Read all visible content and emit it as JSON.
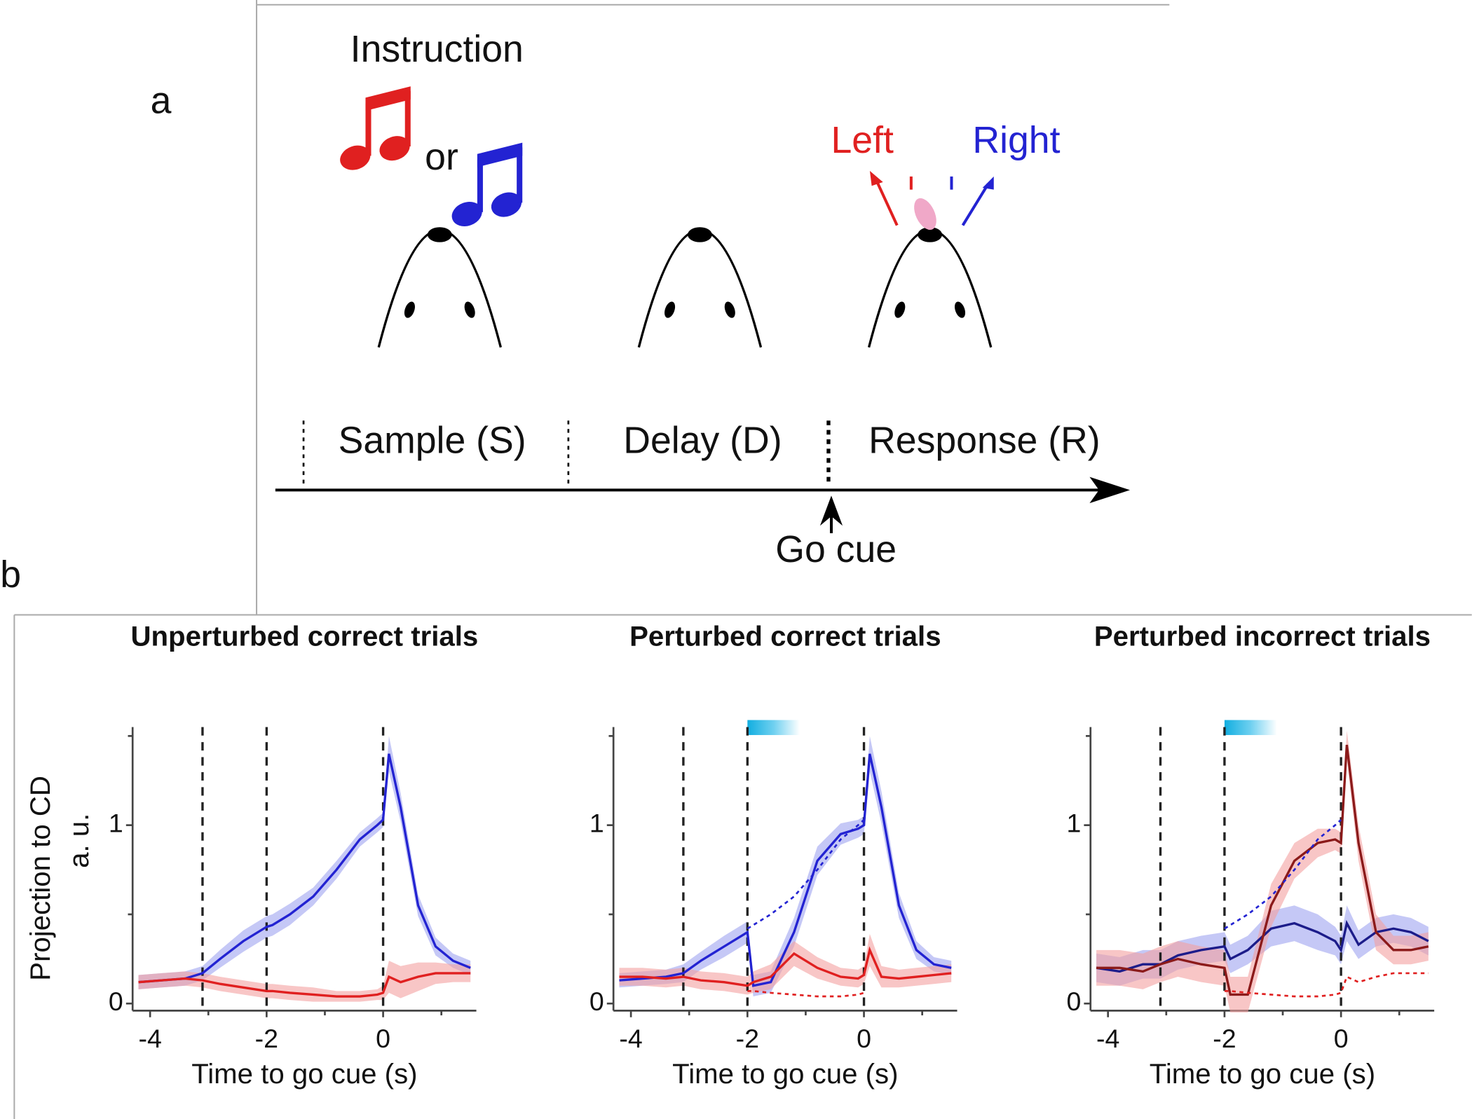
{
  "panel_a": {
    "label": "a",
    "instruction": "Instruction",
    "or": "or",
    "left": "Left",
    "right": "Right",
    "epochs": [
      "Sample (S)",
      "Delay (D)",
      "Response (R)"
    ],
    "go_cue": "Go cue"
  },
  "panel_b": {
    "label": "b"
  },
  "chart_data": [
    {
      "type": "line",
      "title": "Unperturbed correct trials",
      "xlabel": "Time to go cue (s)",
      "ylabel": "Projection to CD",
      "ylabel_units": "a. u.",
      "xlim": [
        -4.3,
        1.6
      ],
      "ylim": [
        -0.04,
        1.55
      ],
      "xticks": [
        -4,
        -2,
        0
      ],
      "xminor_ticks": [
        -3,
        -1,
        1
      ],
      "yticks": [
        0,
        1
      ],
      "yminor_ticks": [
        0.5,
        1.5
      ],
      "epoch_lines": [
        -3.1,
        -2,
        0
      ],
      "x": [
        -4.2,
        -3.8,
        -3.4,
        -3.1,
        -2.8,
        -2.4,
        -2.0,
        -1.9,
        -1.6,
        -1.2,
        -0.8,
        -0.4,
        -0.1,
        0,
        0.1,
        0.3,
        0.6,
        0.9,
        1.2,
        1.5
      ],
      "series": [
        {
          "color": "#2323d2",
          "band_color": "#9ea4f0",
          "values": [
            0.12,
            0.13,
            0.14,
            0.17,
            0.25,
            0.35,
            0.43,
            0.44,
            0.5,
            0.6,
            0.75,
            0.92,
            1.0,
            1.03,
            1.4,
            1.1,
            0.55,
            0.32,
            0.24,
            0.2
          ],
          "errors": [
            0.04,
            0.04,
            0.04,
            0.04,
            0.05,
            0.06,
            0.06,
            0.06,
            0.06,
            0.05,
            0.05,
            0.04,
            0.04,
            0.04,
            0.1,
            0.08,
            0.06,
            0.05,
            0.04,
            0.04
          ]
        },
        {
          "color": "#e02020",
          "band_color": "#f4a0a0",
          "values": [
            0.12,
            0.13,
            0.14,
            0.13,
            0.11,
            0.09,
            0.07,
            0.07,
            0.06,
            0.05,
            0.04,
            0.04,
            0.05,
            0.06,
            0.15,
            0.12,
            0.15,
            0.17,
            0.17,
            0.17
          ],
          "errors": [
            0.04,
            0.04,
            0.04,
            0.04,
            0.04,
            0.04,
            0.04,
            0.04,
            0.04,
            0.04,
            0.03,
            0.03,
            0.03,
            0.04,
            0.09,
            0.09,
            0.08,
            0.06,
            0.05,
            0.05
          ]
        }
      ]
    },
    {
      "type": "line",
      "title": "Perturbed correct trials",
      "xlabel": "Time to go cue (s)",
      "xlim": [
        -4.3,
        1.6
      ],
      "ylim": [
        -0.04,
        1.55
      ],
      "xticks": [
        -4,
        -2,
        0
      ],
      "xminor_ticks": [
        -3,
        -1,
        1
      ],
      "yticks": [
        0,
        1
      ],
      "yminor_ticks": [
        0.5,
        1.5
      ],
      "epoch_lines": [
        -3.1,
        -2,
        0
      ],
      "stimulus": [
        -2,
        -1.1
      ],
      "x": [
        -4.2,
        -3.8,
        -3.4,
        -3.1,
        -2.8,
        -2.4,
        -2.0,
        -1.9,
        -1.6,
        -1.2,
        -0.8,
        -0.4,
        -0.1,
        0,
        0.1,
        0.3,
        0.6,
        0.9,
        1.2,
        1.5
      ],
      "series": [
        {
          "color": "#2323d2",
          "band_color": "#9ea4f0",
          "values": [
            0.13,
            0.14,
            0.15,
            0.17,
            0.24,
            0.32,
            0.4,
            0.1,
            0.12,
            0.4,
            0.8,
            0.95,
            0.98,
            1.0,
            1.4,
            1.1,
            0.55,
            0.3,
            0.22,
            0.2
          ],
          "errors": [
            0.04,
            0.04,
            0.04,
            0.05,
            0.05,
            0.06,
            0.06,
            0.06,
            0.06,
            0.08,
            0.08,
            0.06,
            0.05,
            0.05,
            0.1,
            0.09,
            0.07,
            0.05,
            0.04,
            0.04
          ]
        },
        {
          "color": "#e02020",
          "band_color": "#f4a0a0",
          "values": [
            0.15,
            0.15,
            0.14,
            0.15,
            0.13,
            0.12,
            0.1,
            0.12,
            0.15,
            0.28,
            0.2,
            0.15,
            0.14,
            0.16,
            0.3,
            0.15,
            0.14,
            0.15,
            0.16,
            0.17
          ],
          "errors": [
            0.05,
            0.05,
            0.05,
            0.05,
            0.05,
            0.05,
            0.05,
            0.06,
            0.07,
            0.07,
            0.06,
            0.05,
            0.05,
            0.05,
            0.09,
            0.06,
            0.05,
            0.05,
            0.05,
            0.05
          ]
        },
        {
          "color": "#2323d2",
          "dash": true,
          "values": [
            null,
            null,
            null,
            null,
            null,
            null,
            0.42,
            0.44,
            0.5,
            0.6,
            0.75,
            0.92,
            1.0,
            1.03,
            null,
            null,
            null,
            null,
            null,
            null
          ]
        },
        {
          "color": "#e02020",
          "dash": true,
          "values": [
            null,
            null,
            null,
            null,
            null,
            null,
            0.07,
            0.07,
            0.06,
            0.05,
            0.04,
            0.04,
            0.05,
            0.06,
            null,
            null,
            null,
            null,
            null,
            null
          ]
        }
      ]
    },
    {
      "type": "line",
      "title": "Perturbed incorrect trials",
      "xlabel": "Time to go cue (s)",
      "xlim": [
        -4.3,
        1.6
      ],
      "ylim": [
        -0.04,
        1.55
      ],
      "xticks": [
        -4,
        -2,
        0
      ],
      "xminor_ticks": [
        -3,
        -1,
        1
      ],
      "yticks": [
        0,
        1
      ],
      "yminor_ticks": [
        0.5,
        1.5
      ],
      "epoch_lines": [
        -3.1,
        -2,
        0
      ],
      "stimulus": [
        -2,
        -1.1
      ],
      "x": [
        -4.2,
        -3.8,
        -3.4,
        -3.1,
        -2.8,
        -2.4,
        -2.0,
        -1.9,
        -1.6,
        -1.2,
        -0.8,
        -0.4,
        -0.1,
        0,
        0.1,
        0.3,
        0.6,
        0.9,
        1.2,
        1.5
      ],
      "series": [
        {
          "color": "#1c1c8a",
          "band_color": "#9ea4f0",
          "values": [
            0.2,
            0.18,
            0.22,
            0.22,
            0.27,
            0.3,
            0.32,
            0.25,
            0.3,
            0.42,
            0.45,
            0.4,
            0.35,
            0.3,
            0.45,
            0.33,
            0.4,
            0.42,
            0.4,
            0.35
          ],
          "errors": [
            0.08,
            0.08,
            0.08,
            0.08,
            0.08,
            0.08,
            0.08,
            0.08,
            0.08,
            0.1,
            0.1,
            0.1,
            0.08,
            0.08,
            0.1,
            0.08,
            0.08,
            0.08,
            0.08,
            0.08
          ]
        },
        {
          "color": "#8b1a1a",
          "band_color": "#f4a0a0",
          "values": [
            0.2,
            0.2,
            0.18,
            0.22,
            0.25,
            0.22,
            0.2,
            0.05,
            0.05,
            0.55,
            0.8,
            0.9,
            0.92,
            0.9,
            1.45,
            0.9,
            0.4,
            0.3,
            0.3,
            0.32
          ],
          "errors": [
            0.1,
            0.1,
            0.1,
            0.1,
            0.1,
            0.1,
            0.1,
            0.1,
            0.1,
            0.12,
            0.1,
            0.08,
            0.06,
            0.06,
            0.08,
            0.1,
            0.1,
            0.08,
            0.08,
            0.08
          ]
        },
        {
          "color": "#2323d2",
          "dash": true,
          "values": [
            null,
            null,
            null,
            null,
            null,
            null,
            0.42,
            0.44,
            0.5,
            0.6,
            0.75,
            0.92,
            1.0,
            1.03,
            null,
            null,
            null,
            null,
            null,
            null
          ]
        },
        {
          "color": "#e02020",
          "dash": true,
          "values": [
            null,
            null,
            null,
            null,
            null,
            null,
            0.07,
            0.07,
            0.06,
            0.05,
            0.04,
            0.04,
            0.05,
            0.06,
            0.15,
            0.12,
            0.15,
            0.17,
            0.17,
            0.17
          ]
        }
      ]
    }
  ]
}
